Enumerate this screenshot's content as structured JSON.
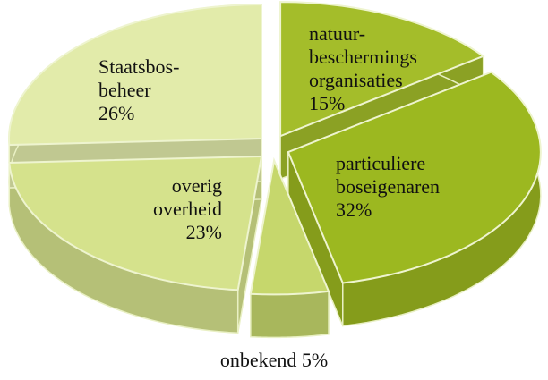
{
  "chart_data": {
    "type": "pie3d",
    "categories": [
      [
        "natuur-",
        "beschermings",
        "organisaties"
      ],
      [
        "particuliere",
        "boseigenaren"
      ],
      [
        "onbekend"
      ],
      [
        "overig",
        "overheid"
      ],
      [
        "Staatsbos-",
        "beheer"
      ]
    ],
    "values": [
      15,
      32,
      5,
      23,
      26
    ],
    "value_labels": [
      "15%",
      "32%",
      "5%",
      "23%",
      "26%"
    ],
    "colors": [
      "#a4bd2a",
      "#9cb820",
      "#c6d76c",
      "#d5e28c",
      "#e2ebaa"
    ]
  }
}
